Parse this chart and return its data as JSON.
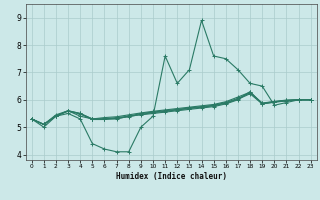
{
  "xlabel": "Humidex (Indice chaleur)",
  "x_values": [
    0,
    1,
    2,
    3,
    4,
    5,
    6,
    7,
    8,
    9,
    10,
    11,
    12,
    13,
    14,
    15,
    16,
    17,
    18,
    19,
    20,
    21,
    22,
    23
  ],
  "lines": [
    [
      5.3,
      5.0,
      5.4,
      5.5,
      5.3,
      4.4,
      4.2,
      4.1,
      4.1,
      5.0,
      5.4,
      7.6,
      6.6,
      7.1,
      8.9,
      7.6,
      7.5,
      7.1,
      6.6,
      6.5,
      5.8,
      5.9,
      6.0,
      6.0
    ],
    [
      5.3,
      5.1,
      5.4,
      5.6,
      5.4,
      5.3,
      5.3,
      5.3,
      5.4,
      5.45,
      5.5,
      5.55,
      5.6,
      5.65,
      5.7,
      5.75,
      5.85,
      6.0,
      6.3,
      5.85,
      5.92,
      5.97,
      6.0,
      6.0
    ],
    [
      5.3,
      5.1,
      5.4,
      5.6,
      5.5,
      5.3,
      5.3,
      5.35,
      5.4,
      5.5,
      5.55,
      5.6,
      5.65,
      5.7,
      5.75,
      5.8,
      5.9,
      6.05,
      6.25,
      5.87,
      5.93,
      5.98,
      6.0,
      6.0
    ],
    [
      5.3,
      5.1,
      5.45,
      5.6,
      5.5,
      5.3,
      5.35,
      5.38,
      5.45,
      5.52,
      5.58,
      5.63,
      5.68,
      5.73,
      5.78,
      5.83,
      5.93,
      6.1,
      6.28,
      5.88,
      5.94,
      5.99,
      6.0,
      6.0
    ],
    [
      5.3,
      5.1,
      5.42,
      5.58,
      5.48,
      5.28,
      5.28,
      5.32,
      5.38,
      5.47,
      5.53,
      5.58,
      5.63,
      5.68,
      5.73,
      5.78,
      5.88,
      6.02,
      6.22,
      5.85,
      5.91,
      5.96,
      6.0,
      6.0
    ]
  ],
  "line_color": "#2a7a65",
  "marker": "+",
  "markersize": 3,
  "linewidth": 0.8,
  "bg_color": "#cce8e8",
  "grid_color": "#aacccc",
  "xlim": [
    -0.5,
    23.5
  ],
  "ylim": [
    3.8,
    9.5
  ],
  "yticks": [
    4,
    5,
    6,
    7,
    8,
    9
  ],
  "xticks": [
    0,
    1,
    2,
    3,
    4,
    5,
    6,
    7,
    8,
    9,
    10,
    11,
    12,
    13,
    14,
    15,
    16,
    17,
    18,
    19,
    20,
    21,
    22,
    23
  ]
}
